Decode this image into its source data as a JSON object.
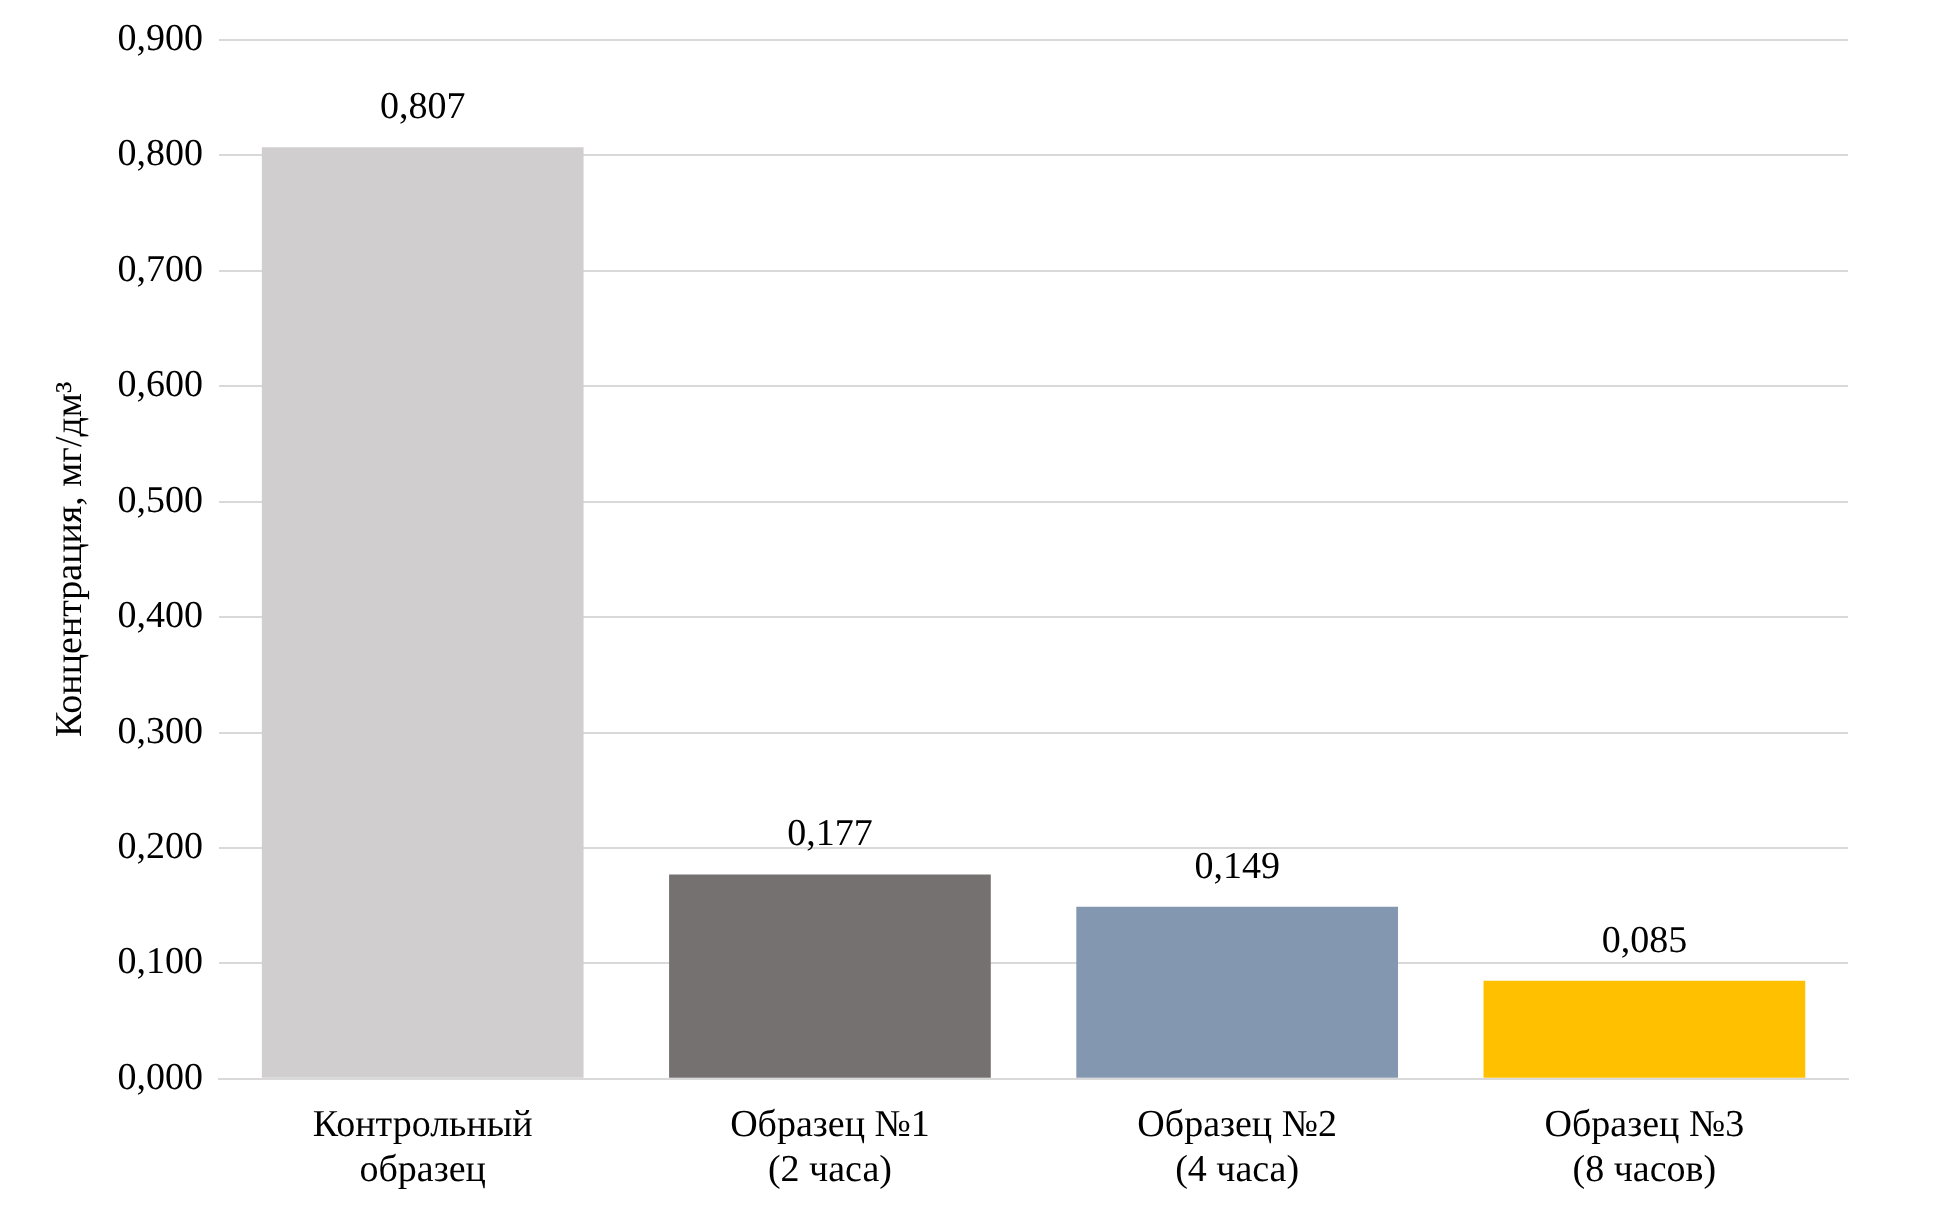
{
  "chart_data": {
    "type": "bar",
    "ylabel": "Концентрация, мг/дм³",
    "categories": [
      "Контрольный образец",
      "Образец №1 (2 часа)",
      "Образец №2 (4 часа)",
      "Образец №3 (8 часов)"
    ],
    "values": [
      0.807,
      0.177,
      0.149,
      0.085
    ],
    "colors": [
      "#d0cece",
      "#767171",
      "#8497b0",
      "#ffc000"
    ],
    "ylim": [
      0,
      0.9
    ],
    "yticks": [
      {
        "value": 0,
        "label": "0,000"
      },
      {
        "value": 0.1,
        "label": "0,100"
      },
      {
        "value": 0.2,
        "label": "0,200"
      },
      {
        "value": 0.3,
        "label": "0,300"
      },
      {
        "value": 0.4,
        "label": "0,400"
      },
      {
        "value": 0.5,
        "label": "0,500"
      },
      {
        "value": 0.6,
        "label": "0,600"
      },
      {
        "value": 0.7,
        "label": "0,700"
      },
      {
        "value": 0.8,
        "label": "0,800"
      },
      {
        "value": 0.9,
        "label": "0,900"
      }
    ],
    "value_labels": [
      "0,807",
      "0,177",
      "0,149",
      "0,085"
    ],
    "grid": "y",
    "legend": false
  }
}
